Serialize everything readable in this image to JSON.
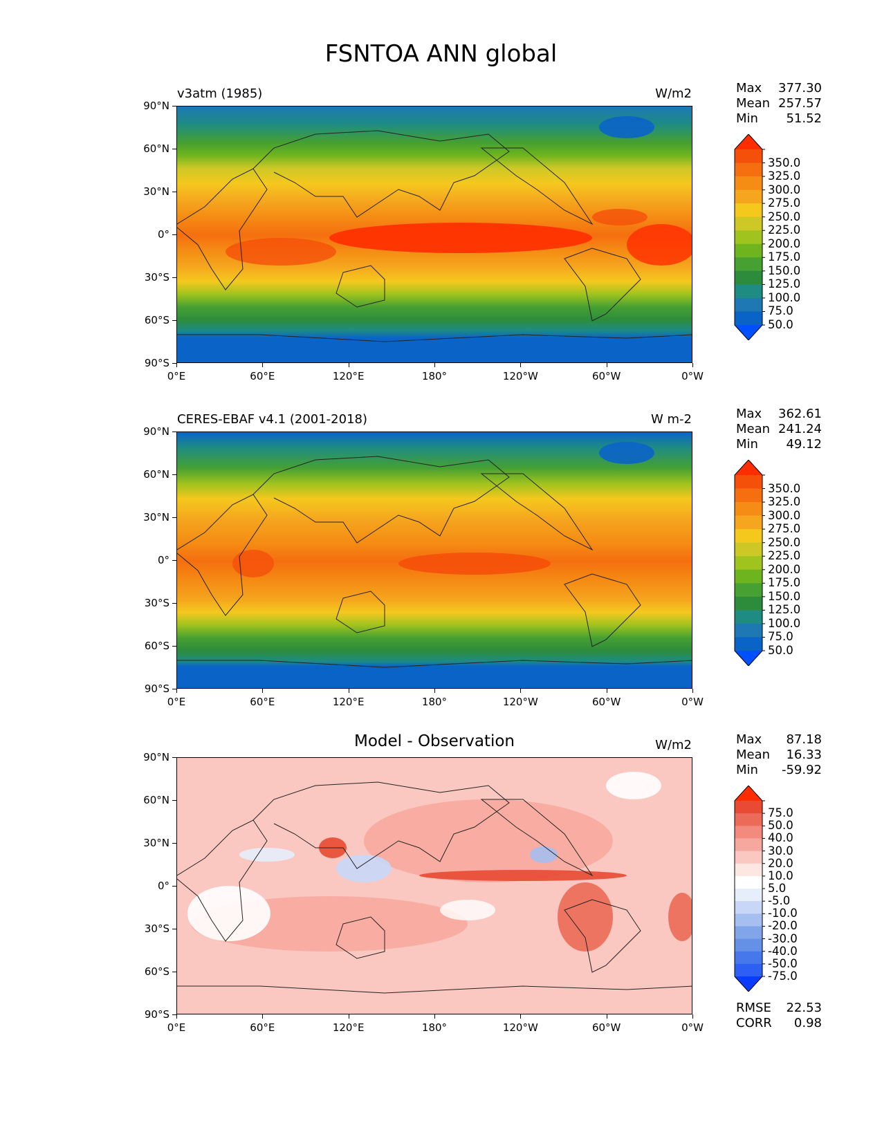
{
  "title": "FSNTOA ANN global",
  "colors": {
    "seq": [
      "#0050ff",
      "#0a64c8",
      "#1e78b4",
      "#1e8c82",
      "#2d8c3c",
      "#46a032",
      "#6eb41e",
      "#a0c31e",
      "#cdc826",
      "#f5c81e",
      "#f5a51e",
      "#f58c14",
      "#f56e0f",
      "#f5500a",
      "#ff2d00"
    ],
    "diff": [
      "#0a3cff",
      "#2d5ff5",
      "#4678eb",
      "#6491e6",
      "#82a5ea",
      "#a5bff0",
      "#c8d7f7",
      "#e6eefc",
      "#ffffff",
      "#fde7e3",
      "#fac8c0",
      "#f7a89e",
      "#f28a7d",
      "#ec6a58",
      "#e84a33",
      "#ff2d00"
    ]
  },
  "panels": [
    {
      "label": "v3atm (1985)",
      "units": "W/m2",
      "stats": [
        {
          "name": "Max",
          "value": "377.30"
        },
        {
          "name": "Mean",
          "value": "257.57"
        },
        {
          "name": "Min",
          "value": "51.52"
        }
      ],
      "colorbar_labels": [
        "350.0",
        "325.0",
        "300.0",
        "275.0",
        "250.0",
        "225.0",
        "200.0",
        "175.0",
        "150.0",
        "125.0",
        "100.0",
        "75.0",
        "50.0"
      ]
    },
    {
      "label": "CERES-EBAF v4.1 (2001-2018)",
      "units": "W m-2",
      "stats": [
        {
          "name": "Max",
          "value": "362.61"
        },
        {
          "name": "Mean",
          "value": "241.24"
        },
        {
          "name": "Min",
          "value": "49.12"
        }
      ],
      "colorbar_labels": [
        "350.0",
        "325.0",
        "300.0",
        "275.0",
        "250.0",
        "225.0",
        "200.0",
        "175.0",
        "150.0",
        "125.0",
        "100.0",
        "75.0",
        "50.0"
      ]
    },
    {
      "label": "Model - Observation",
      "units": "W/m2",
      "stats": [
        {
          "name": "Max",
          "value": "87.18"
        },
        {
          "name": "Mean",
          "value": "16.33"
        },
        {
          "name": "Min",
          "value": "-59.92"
        }
      ],
      "colorbar_labels": [
        "75.0",
        "50.0",
        "40.0",
        "30.0",
        "20.0",
        "10.0",
        "5.0",
        "-5.0",
        "-10.0",
        "-20.0",
        "-30.0",
        "-40.0",
        "-50.0",
        "-75.0"
      ],
      "extra_stats": [
        {
          "name": "RMSE",
          "value": "22.53"
        },
        {
          "name": "CORR",
          "value": "0.98"
        }
      ]
    }
  ],
  "lat_labels": [
    "90°N",
    "60°N",
    "30°N",
    "0°",
    "30°S",
    "60°S",
    "90°S"
  ],
  "lon_labels": [
    "0°E",
    "60°E",
    "120°E",
    "180°",
    "120°W",
    "60°W",
    "0°W"
  ]
}
